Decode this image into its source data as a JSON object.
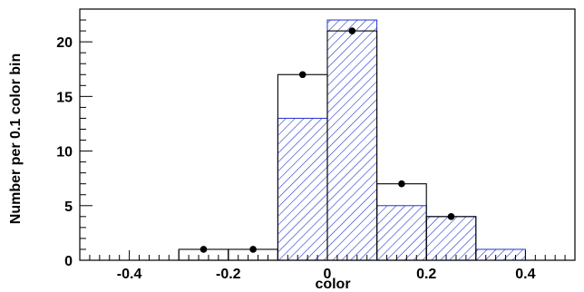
{
  "chart_data": {
    "type": "bar",
    "xlabel": "color",
    "ylabel": "Number per 0.1 color bin",
    "xlim": [
      -0.5,
      0.5
    ],
    "ylim": [
      0,
      23
    ],
    "grid": false,
    "x_ticks": [
      {
        "value": -0.4,
        "label": "-0.4"
      },
      {
        "value": -0.2,
        "label": "-0.2"
      },
      {
        "value": 0,
        "label": "0"
      },
      {
        "value": 0.2,
        "label": "0.2"
      },
      {
        "value": 0.4,
        "label": "0.4"
      }
    ],
    "y_ticks": [
      {
        "value": 0,
        "label": "0"
      },
      {
        "value": 5,
        "label": "5"
      },
      {
        "value": 10,
        "label": "10"
      },
      {
        "value": 15,
        "label": "15"
      },
      {
        "value": 20,
        "label": "20"
      }
    ],
    "series": [
      {
        "style": "hatched-histogram",
        "color": "#2233cc",
        "bins": [
          {
            "x0": -0.1,
            "x1": 0.0,
            "value": 13
          },
          {
            "x0": 0.0,
            "x1": 0.1,
            "value": 22
          },
          {
            "x0": 0.1,
            "x1": 0.2,
            "value": 5
          },
          {
            "x0": 0.2,
            "x1": 0.3,
            "value": 4
          },
          {
            "x0": 0.3,
            "x1": 0.4,
            "value": 1
          }
        ]
      },
      {
        "style": "open-histogram",
        "color": "#000000",
        "bins": [
          {
            "x0": -0.3,
            "x1": -0.2,
            "value": 1
          },
          {
            "x0": -0.2,
            "x1": -0.1,
            "value": 1
          },
          {
            "x0": -0.1,
            "x1": 0.0,
            "value": 17
          },
          {
            "x0": 0.0,
            "x1": 0.1,
            "value": 21
          },
          {
            "x0": 0.1,
            "x1": 0.2,
            "value": 7
          },
          {
            "x0": 0.2,
            "x1": 0.3,
            "value": 4
          }
        ]
      },
      {
        "style": "points",
        "color": "#000000",
        "points": [
          {
            "x": -0.25,
            "y": 1
          },
          {
            "x": -0.15,
            "y": 1
          },
          {
            "x": -0.05,
            "y": 17
          },
          {
            "x": 0.05,
            "y": 21
          },
          {
            "x": 0.15,
            "y": 7
          },
          {
            "x": 0.25,
            "y": 4
          }
        ]
      }
    ]
  }
}
